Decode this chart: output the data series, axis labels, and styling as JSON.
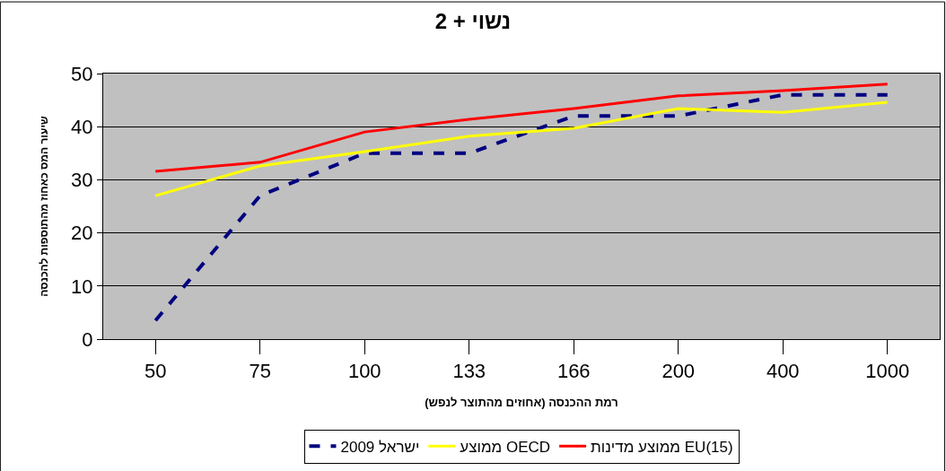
{
  "chart_data": {
    "type": "line",
    "title": "נשוי + 2",
    "xlabel": "רמת ההכנסה (אחוזים מהתוצר לנפש)",
    "ylabel": "שיעור המס כאחוז מהתוספות להכנסה",
    "categories": [
      "50",
      "75",
      "100",
      "133",
      "166",
      "200",
      "400",
      "1000"
    ],
    "series": [
      {
        "name": "ישראל 2009",
        "color": "#000080",
        "line_style": "dashed",
        "values": [
          3.5,
          27,
          35,
          35,
          42,
          42,
          46,
          46
        ]
      },
      {
        "name": "ממוצע OECD",
        "color": "#ffff00",
        "values": [
          27,
          32.6,
          35.3,
          38.2,
          39.7,
          43.4,
          42.7,
          44.6
        ]
      },
      {
        "name": "ממוצע מדינות EU(15)",
        "color": "#ff0000",
        "values": [
          31.6,
          33.3,
          39,
          41.4,
          43.4,
          45.8,
          46.8,
          48
        ]
      }
    ],
    "ylim": [
      0,
      50
    ],
    "yticks": [
      0,
      10,
      20,
      30,
      40,
      50
    ],
    "grid": "y",
    "legend": "bottom",
    "marker": "none",
    "line_style": "solid"
  }
}
